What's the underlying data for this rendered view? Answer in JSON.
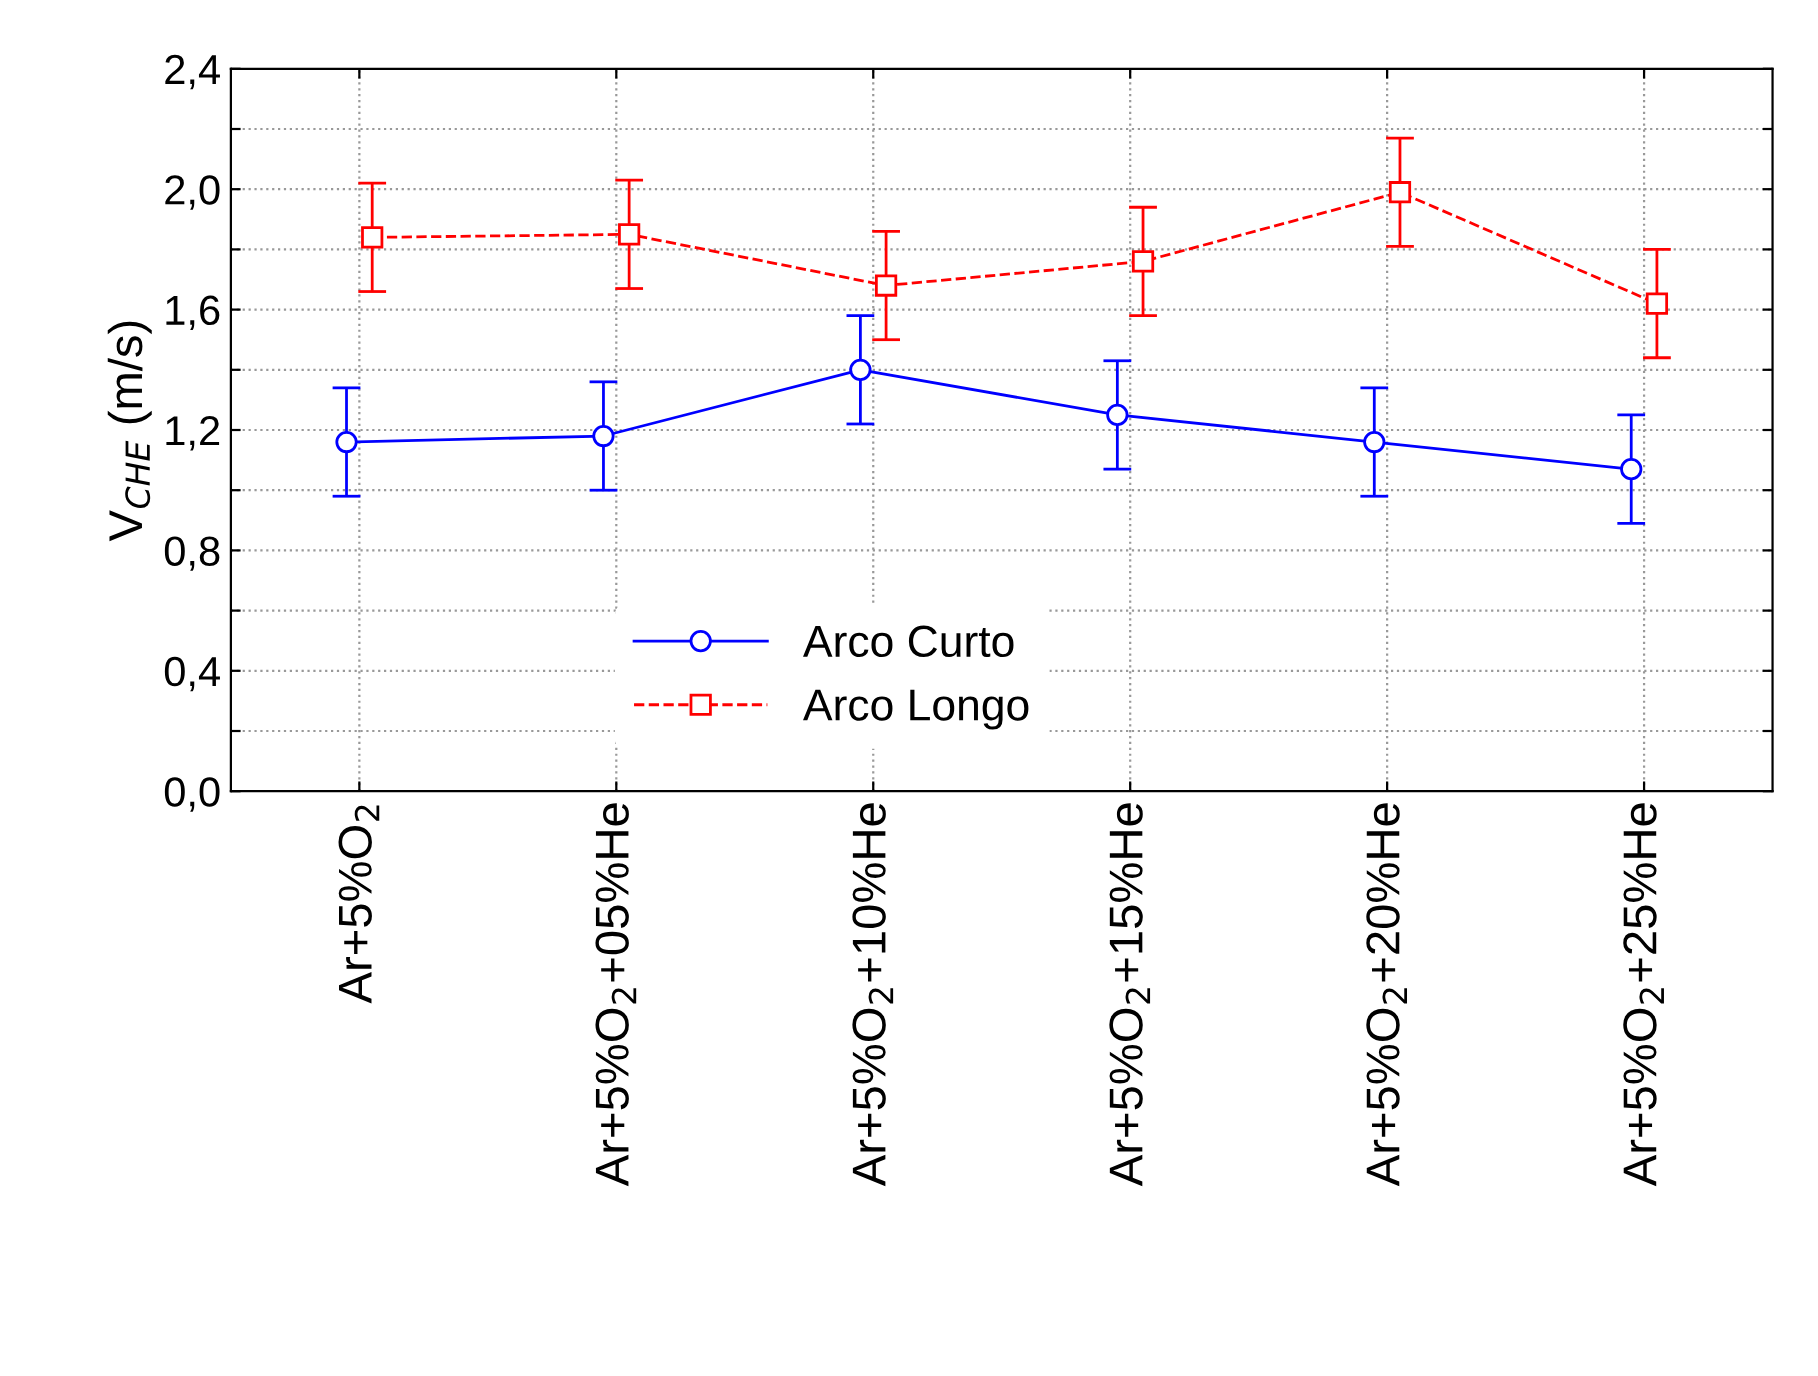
{
  "chart_data": {
    "type": "line",
    "ylabel": "V$_{CHE}$ (m/s)",
    "categories": [
      "Ar+5%O$_{2}$",
      "Ar+5%O$_{2}$+05%He",
      "Ar+5%O$_{2}$+10%He",
      "Ar+5%O$_{2}$+15%He",
      "Ar+5%O$_{2}$+20%He",
      "Ar+5%O$_{2}$+25%He"
    ],
    "series": [
      {
        "name": "Arco Curto",
        "color": "#0000ff",
        "marker": "circle",
        "line_style": "solid",
        "values": [
          1.16,
          1.18,
          1.4,
          1.25,
          1.16,
          1.07
        ],
        "errors": [
          0.18,
          0.18,
          0.18,
          0.18,
          0.18,
          0.18
        ]
      },
      {
        "name": "Arco Longo",
        "color": "#ff0000",
        "marker": "square",
        "line_style": "dashed",
        "values": [
          1.84,
          1.85,
          1.68,
          1.76,
          1.99,
          1.62
        ],
        "errors": [
          0.18,
          0.18,
          0.18,
          0.18,
          0.18,
          0.18
        ]
      }
    ],
    "ylim": [
      0,
      2.4
    ],
    "yticks": [
      {
        "value": 0.0,
        "label": "0,0"
      },
      {
        "value": 0.2,
        "label": null
      },
      {
        "value": 0.4,
        "label": "0,4"
      },
      {
        "value": 0.6,
        "label": null
      },
      {
        "value": 0.8,
        "label": "0,8"
      },
      {
        "value": 1.0,
        "label": null
      },
      {
        "value": 1.2,
        "label": "1,2"
      },
      {
        "value": 1.4,
        "label": null
      },
      {
        "value": 1.6,
        "label": "1,6"
      },
      {
        "value": 1.8,
        "label": null
      },
      {
        "value": 2.0,
        "label": "2,0"
      },
      {
        "value": 2.2,
        "label": null
      },
      {
        "value": 2.4,
        "label": "2,4"
      }
    ],
    "grid": true,
    "legend": "bottom"
  }
}
